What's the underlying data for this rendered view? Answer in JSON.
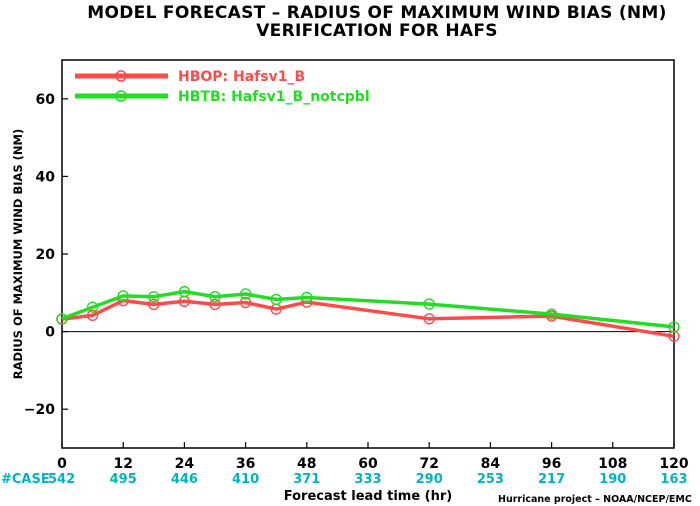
{
  "chart_data": {
    "type": "line",
    "title": "MODEL FORECAST – RADIUS OF MAXIMUM WIND BIAS (NM)",
    "subtitle": "VERIFICATION FOR HAFS",
    "xlabel": "Forecast lead time (hr)",
    "ylabel": "RADIUS OF MAXIMUM WIND BIAS (NM)",
    "xlim": [
      0,
      120
    ],
    "ylim": [
      -30,
      70
    ],
    "x_ticks": [
      "0",
      "12",
      "24",
      "36",
      "48",
      "60",
      "72",
      "84",
      "96",
      "108",
      "120"
    ],
    "y_ticks": [
      "60",
      "40",
      "20",
      "0",
      "-20"
    ],
    "legend_position": "top-left",
    "series": [
      {
        "name": "HBOP: Hafsv1_B",
        "color": "#ff4a4a",
        "x": [
          0,
          6,
          12,
          18,
          24,
          30,
          36,
          42,
          48,
          72,
          96,
          120
        ],
        "y": [
          3.2,
          4.2,
          8.0,
          7.0,
          7.8,
          7.0,
          7.5,
          5.8,
          7.6,
          3.3,
          4.0,
          -1.2
        ]
      },
      {
        "name": "HBTB: Hafsv1_B_notcpbl",
        "color": "#22dd22",
        "x": [
          0,
          6,
          12,
          18,
          24,
          30,
          36,
          42,
          48,
          72,
          96,
          120
        ],
        "y": [
          3.3,
          6.3,
          9.2,
          9.0,
          10.3,
          9.0,
          9.7,
          8.3,
          8.8,
          7.1,
          4.5,
          1.2
        ]
      }
    ],
    "case_counts": {
      "label": "#CASE",
      "values": [
        "542",
        "495",
        "446",
        "410",
        "371",
        "333",
        "290",
        "253",
        "217",
        "190",
        "163"
      ]
    },
    "credit": "Hurricane project – NOAA/NCEP/EMC"
  }
}
